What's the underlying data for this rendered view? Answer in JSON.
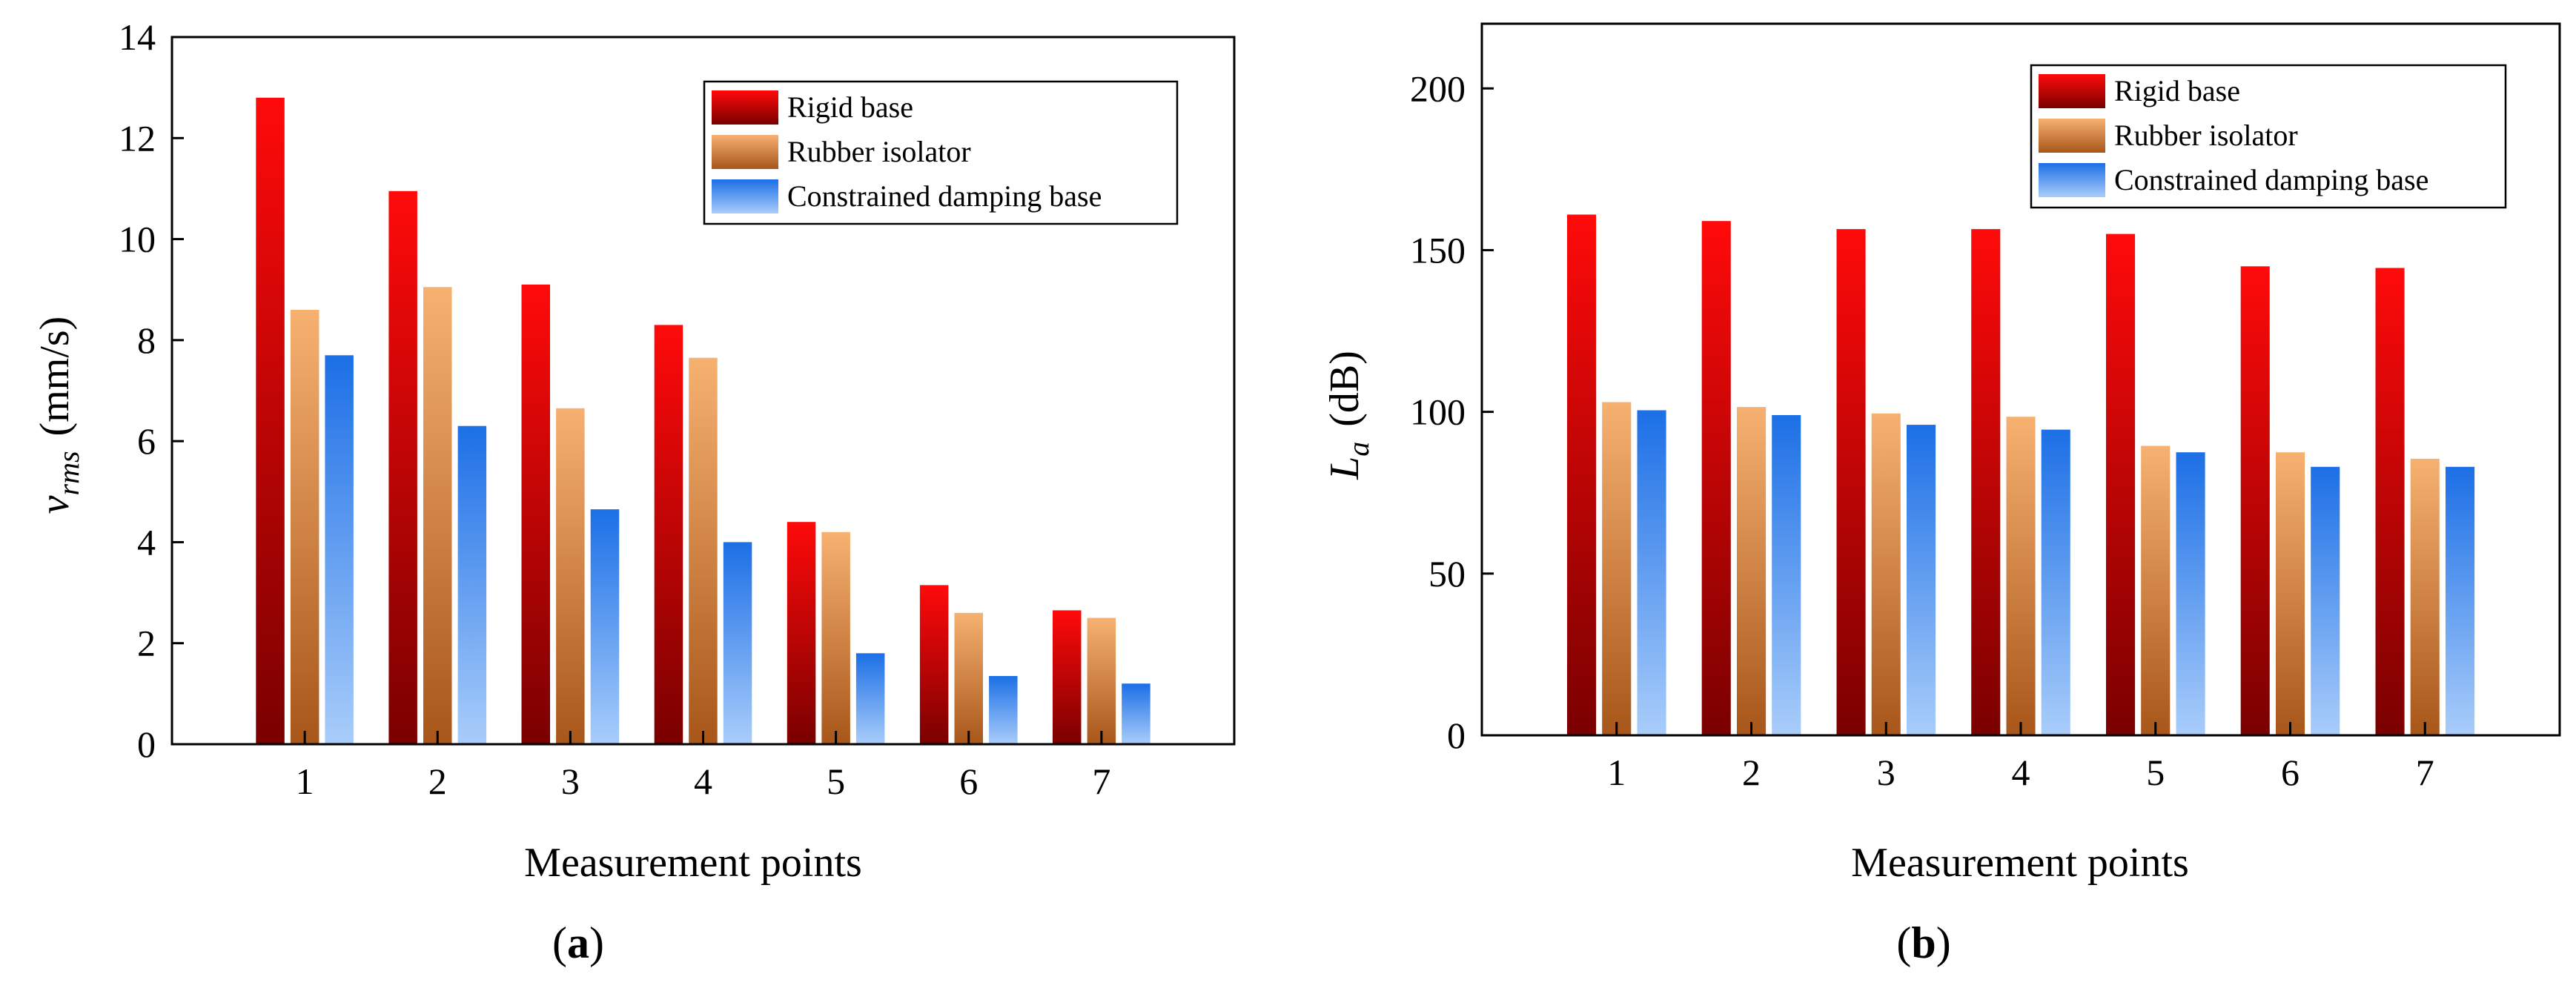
{
  "colors": {
    "rigid_top": "#ff0a0a",
    "rigid_bottom": "#7a0000",
    "rubber_top": "#f6b171",
    "rubber_bottom": "#a8561a",
    "damping_top": "#1c6fe6",
    "damping_bottom": "#a9cdfa",
    "axis": "#000000"
  },
  "legend": {
    "items": [
      {
        "label": "Rigid base",
        "key": "rigid"
      },
      {
        "label": "Rubber isolator",
        "key": "rubber"
      },
      {
        "label": "Constrained damping base",
        "key": "damping"
      }
    ]
  },
  "chart_data": [
    {
      "type": "bar",
      "panel_label": "a",
      "xlabel": "Measurement points",
      "ylabel_main": "v",
      "ylabel_sub": "rms",
      "ylabel_unit": "(mm/s)",
      "ylim": [
        0,
        14
      ],
      "yticks": [
        0,
        2,
        4,
        6,
        8,
        10,
        12,
        14
      ],
      "categories": [
        "1",
        "2",
        "3",
        "4",
        "5",
        "6",
        "7"
      ],
      "legend_position": "top-right",
      "series": [
        {
          "name": "Rigid base",
          "key": "rigid",
          "values": [
            12.8,
            10.95,
            9.1,
            8.3,
            4.4,
            3.15,
            2.65
          ]
        },
        {
          "name": "Rubber isolator",
          "key": "rubber",
          "values": [
            8.6,
            9.05,
            6.65,
            7.65,
            4.2,
            2.6,
            2.5
          ]
        },
        {
          "name": "Constrained damping base",
          "key": "damping",
          "values": [
            7.7,
            6.3,
            4.65,
            4.0,
            1.8,
            1.35,
            1.2
          ]
        }
      ]
    },
    {
      "type": "bar",
      "panel_label": "b",
      "xlabel": "Measurement points",
      "ylabel_main": "L",
      "ylabel_sub": "a",
      "ylabel_unit": "(dB)",
      "ylim": [
        0,
        220
      ],
      "yticks": [
        0,
        50,
        100,
        150,
        200
      ],
      "categories": [
        "1",
        "2",
        "3",
        "4",
        "5",
        "6",
        "7"
      ],
      "legend_position": "top-right",
      "series": [
        {
          "name": "Rigid base",
          "key": "rigid",
          "values": [
            161,
            159,
            156.5,
            156.5,
            155,
            145,
            144.5
          ]
        },
        {
          "name": "Rubber isolator",
          "key": "rubber",
          "values": [
            103,
            101.5,
            99.5,
            98.5,
            89.5,
            87.5,
            85.5
          ]
        },
        {
          "name": "Constrained damping base",
          "key": "damping",
          "values": [
            100.5,
            99,
            96,
            94.5,
            87.5,
            83,
            83
          ]
        }
      ]
    }
  ]
}
